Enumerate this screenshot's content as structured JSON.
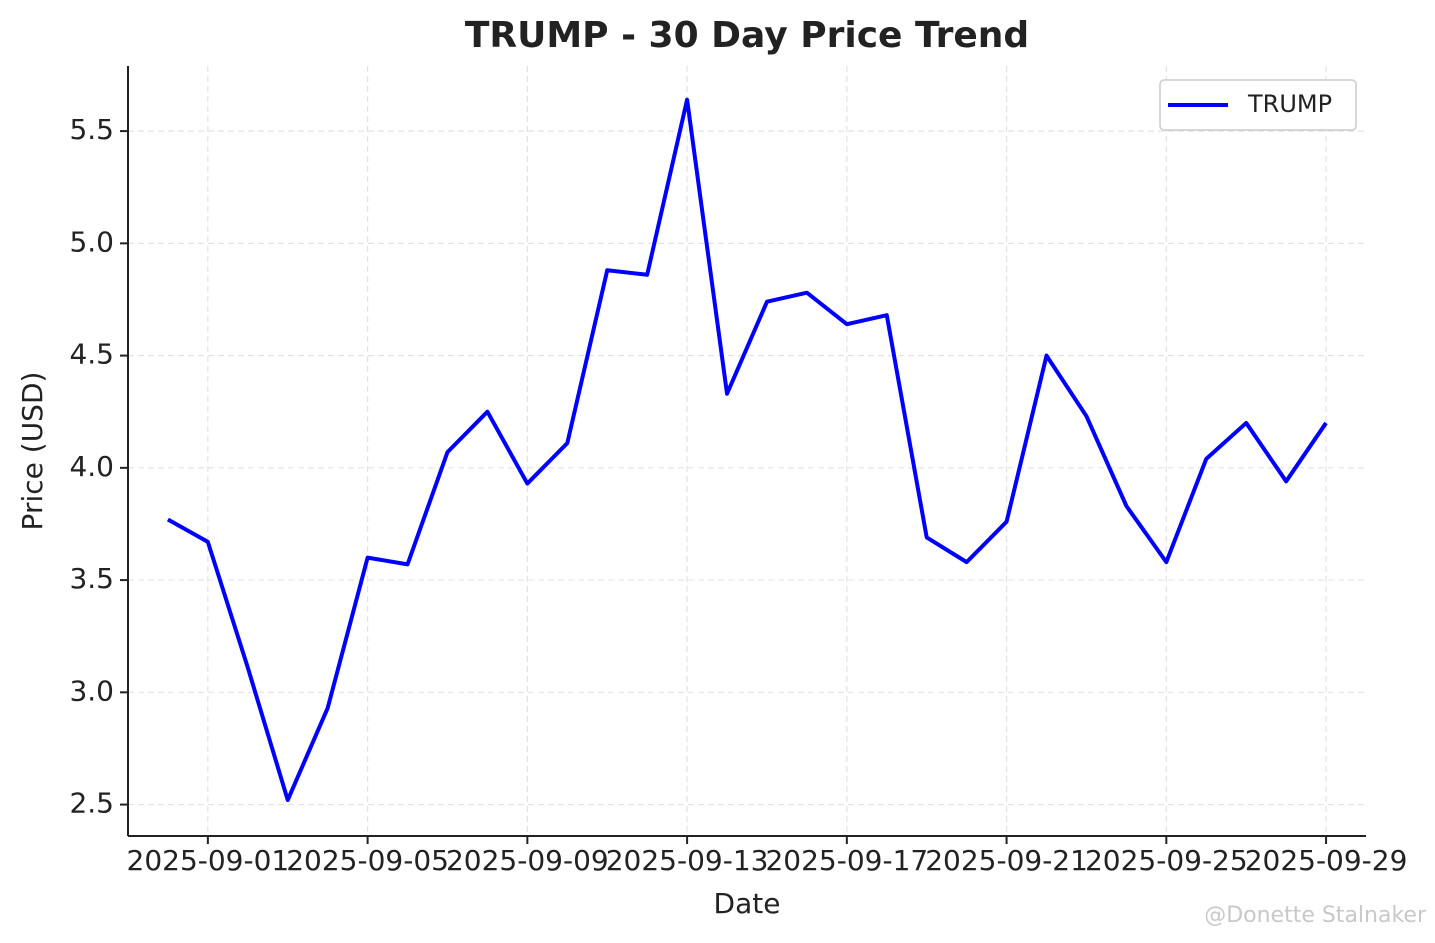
{
  "chart_data": {
    "type": "line",
    "title": "TRUMP - 30 Day Price Trend",
    "x_label": "Date",
    "y_label": "Price (USD)",
    "x": [
      "2025-08-31",
      "2025-09-01",
      "2025-09-02",
      "2025-09-03",
      "2025-09-04",
      "2025-09-05",
      "2025-09-06",
      "2025-09-07",
      "2025-09-08",
      "2025-09-09",
      "2025-09-10",
      "2025-09-11",
      "2025-09-12",
      "2025-09-13",
      "2025-09-14",
      "2025-09-15",
      "2025-09-16",
      "2025-09-17",
      "2025-09-18",
      "2025-09-19",
      "2025-09-20",
      "2025-09-21",
      "2025-09-22",
      "2025-09-23",
      "2025-09-24",
      "2025-09-25",
      "2025-09-26",
      "2025-09-27",
      "2025-09-28",
      "2025-09-29"
    ],
    "series": [
      {
        "name": "TRUMP",
        "color": "#0000ff",
        "values": [
          3.77,
          3.67,
          3.11,
          2.52,
          2.93,
          3.6,
          3.57,
          4.07,
          4.25,
          3.93,
          4.11,
          4.88,
          4.86,
          5.64,
          4.33,
          4.74,
          4.78,
          4.64,
          4.68,
          3.69,
          3.58,
          3.76,
          4.5,
          4.23,
          3.83,
          3.58,
          4.04,
          4.2,
          3.94,
          4.2
        ]
      }
    ],
    "xlim": [
      "2025-08-30",
      "2025-09-30"
    ],
    "xticks": [
      "2025-09-01",
      "2025-09-05",
      "2025-09-09",
      "2025-09-13",
      "2025-09-17",
      "2025-09-21",
      "2025-09-25",
      "2025-09-29"
    ],
    "ylim": [
      2.36,
      5.79
    ],
    "yticks": [
      2.5,
      {
        "value": 3,
        "label": "3.0"
      },
      3.5,
      {
        "value": 4,
        "label": "4.0"
      },
      4.5,
      {
        "value": 5,
        "label": "5.0"
      },
      5.5
    ],
    "grid": true,
    "legend": "upper right",
    "watermark": "@Donette Stalnaker"
  }
}
